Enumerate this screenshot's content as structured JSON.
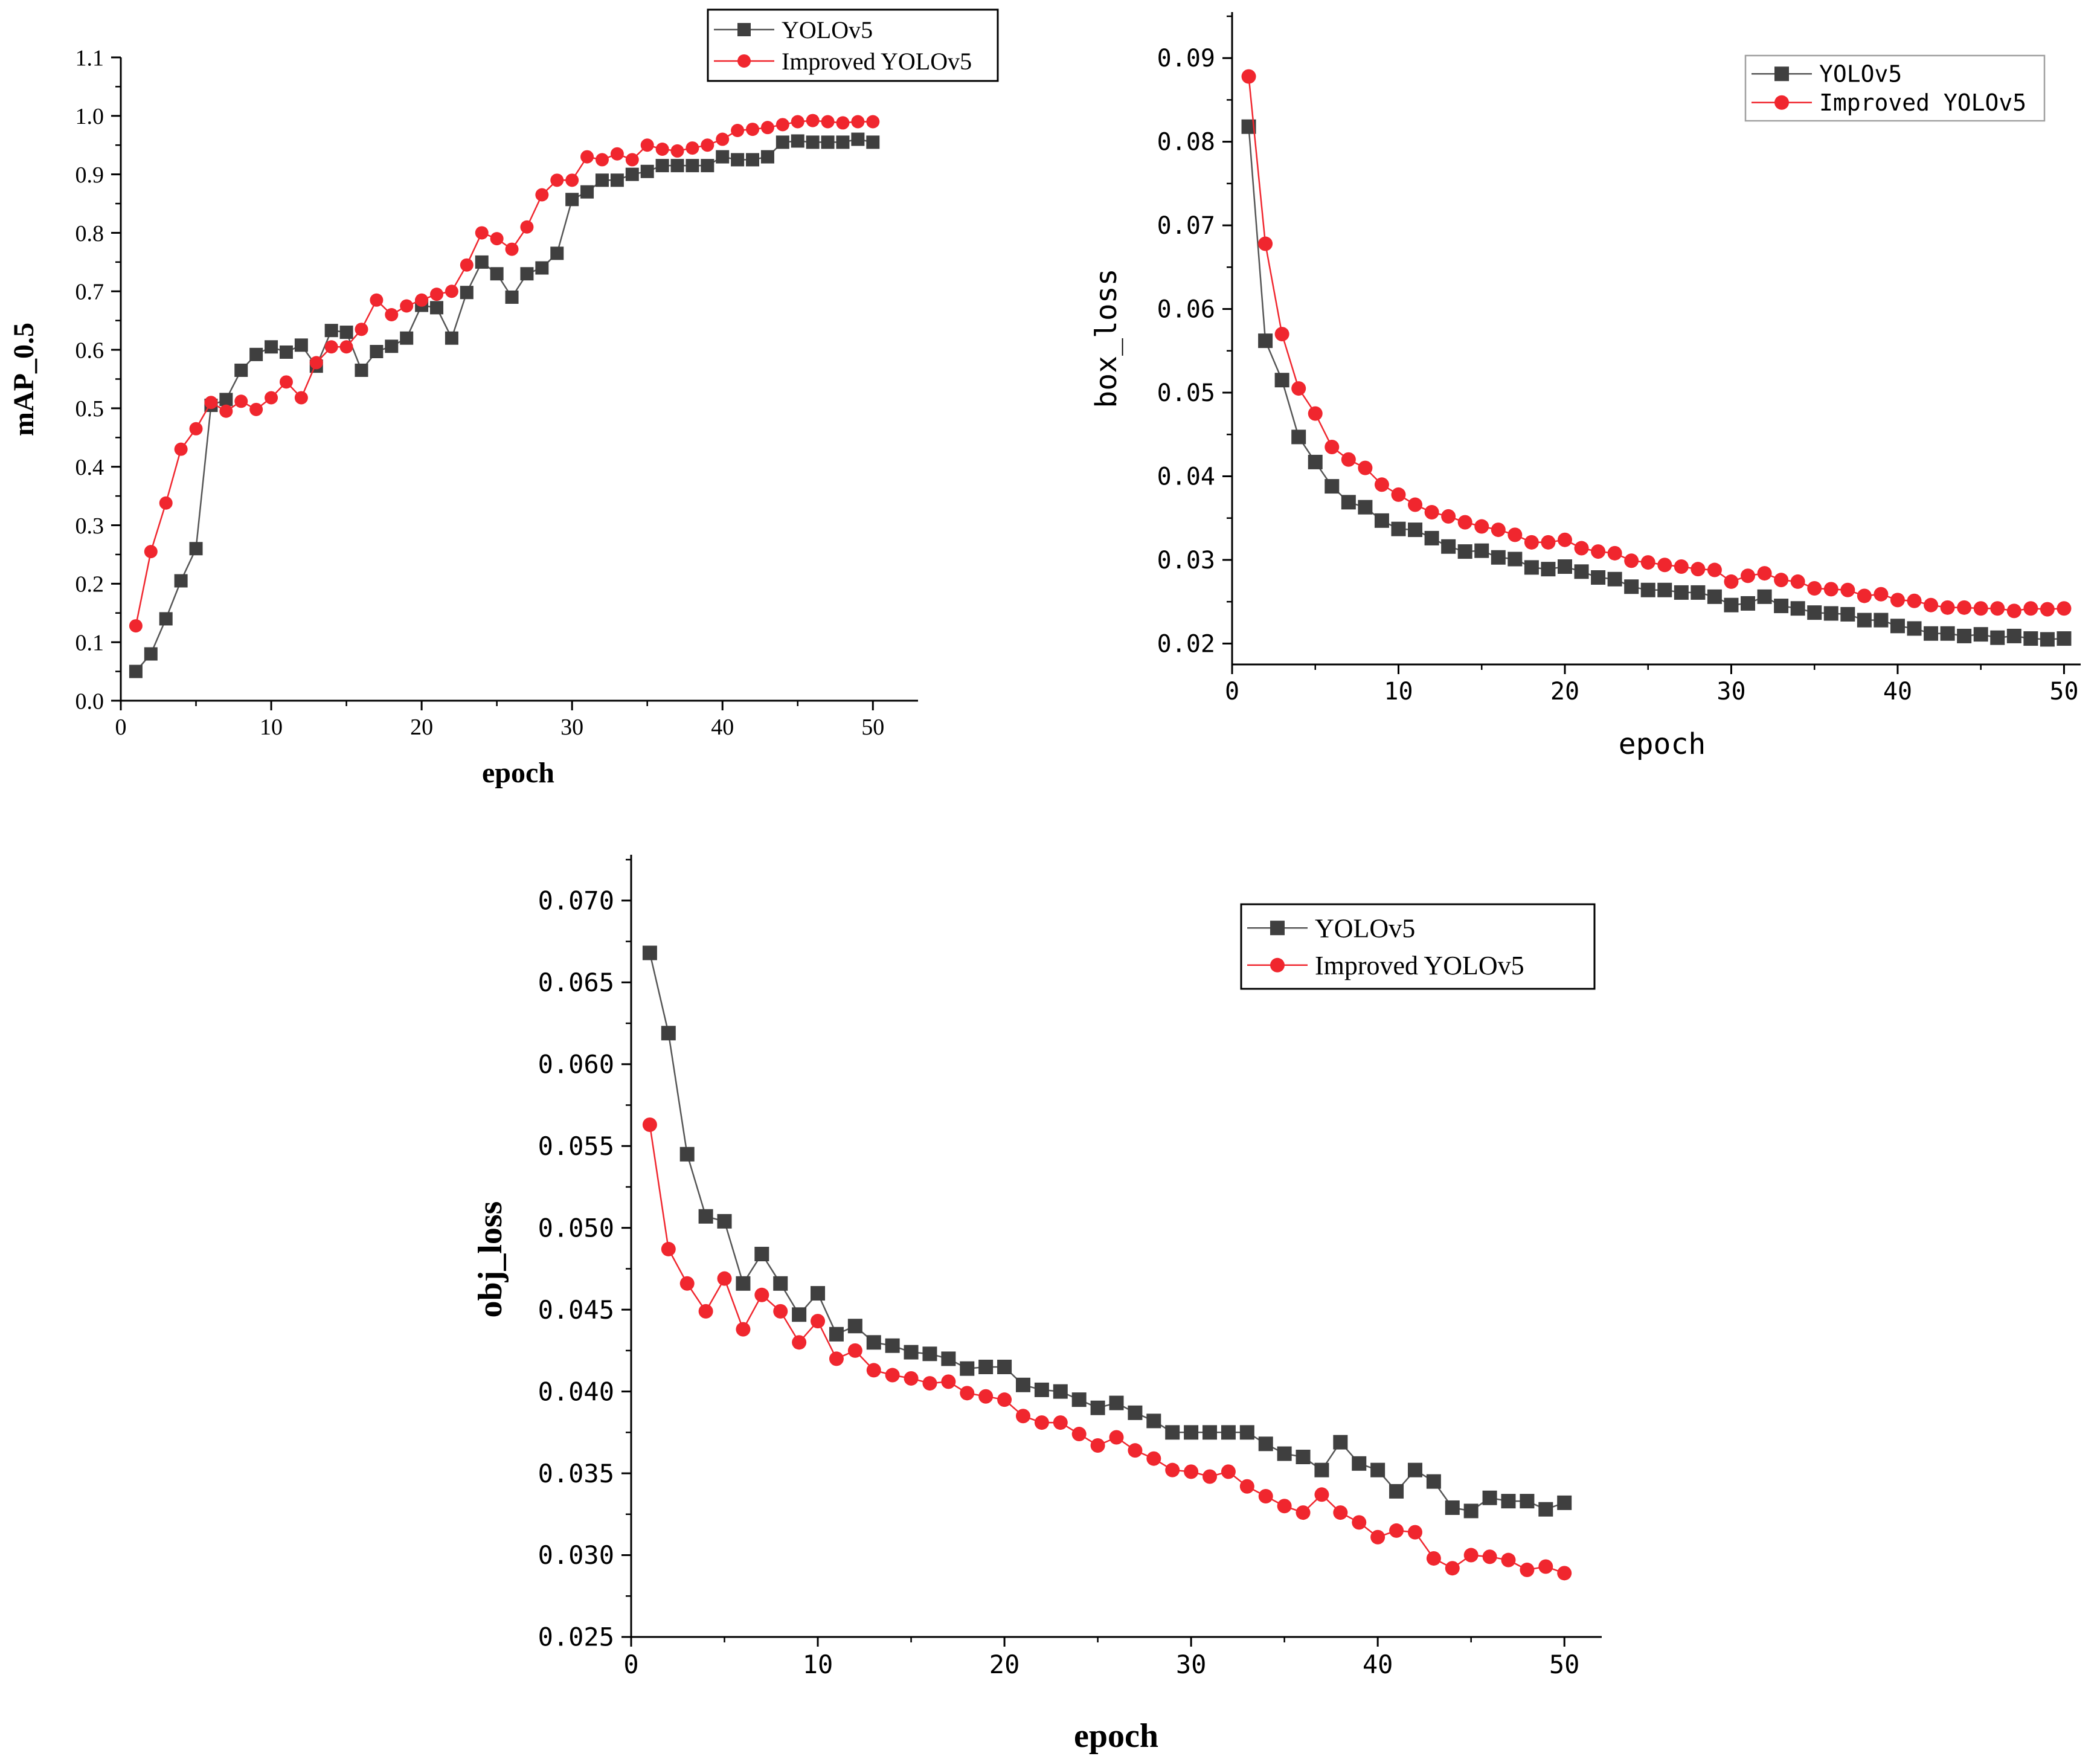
{
  "colors": {
    "yolov5": "#3f3f3f",
    "improved": "#f0262e",
    "yolov5_line": "#555555",
    "improved_line": "#f0262e"
  },
  "chart_data": [
    {
      "type": "line",
      "id": "map",
      "title": "",
      "xlabel": "epoch",
      "ylabel": "mAP_0.5",
      "xlim": [
        0,
        53
      ],
      "ylim": [
        0.0,
        1.1
      ],
      "xticks": [
        "0",
        "10",
        "20",
        "30",
        "40",
        "50"
      ],
      "yticks": [
        "0.0",
        "0.1",
        "0.2",
        "0.3",
        "0.4",
        "0.5",
        "0.6",
        "0.7",
        "0.8",
        "0.9",
        "1.0",
        "1.1"
      ],
      "legend": {
        "position": "top-right",
        "entries": [
          "YOLOv5",
          "Improved YOLOv5"
        ]
      },
      "x": [
        1,
        2,
        3,
        4,
        5,
        6,
        7,
        8,
        9,
        10,
        11,
        12,
        13,
        14,
        15,
        16,
        17,
        18,
        19,
        20,
        21,
        22,
        23,
        24,
        25,
        26,
        27,
        28,
        29,
        30,
        31,
        32,
        33,
        34,
        35,
        36,
        37,
        38,
        39,
        40,
        41,
        42,
        43,
        44,
        45,
        46,
        47,
        48,
        49,
        50
      ],
      "series": [
        {
          "name": "YOLOv5",
          "marker": "square",
          "values": [
            0.05,
            0.08,
            0.14,
            0.205,
            0.26,
            0.505,
            0.515,
            0.565,
            0.592,
            0.605,
            0.596,
            0.608,
            0.572,
            0.633,
            0.63,
            0.565,
            0.597,
            0.606,
            0.62,
            0.676,
            0.672,
            0.62,
            0.698,
            0.75,
            0.73,
            0.69,
            0.73,
            0.74,
            0.765,
            0.857,
            0.87,
            0.89,
            0.89,
            0.9,
            0.905,
            0.915,
            0.915,
            0.915,
            0.915,
            0.93,
            0.925,
            0.925,
            0.93,
            0.955,
            0.957,
            0.955,
            0.955,
            0.955,
            0.96,
            0.955
          ]
        },
        {
          "name": "Improved YOLOv5",
          "marker": "circle",
          "values": [
            0.128,
            0.255,
            0.338,
            0.43,
            0.465,
            0.51,
            0.495,
            0.512,
            0.498,
            0.518,
            0.545,
            0.518,
            0.578,
            0.605,
            0.605,
            0.635,
            0.685,
            0.66,
            0.675,
            0.685,
            0.695,
            0.7,
            0.745,
            0.8,
            0.79,
            0.772,
            0.81,
            0.865,
            0.89,
            0.89,
            0.93,
            0.925,
            0.935,
            0.925,
            0.95,
            0.943,
            0.94,
            0.945,
            0.95,
            0.96,
            0.975,
            0.977,
            0.98,
            0.985,
            0.99,
            0.992,
            0.99,
            0.988,
            0.99,
            0.99
          ]
        }
      ]
    },
    {
      "type": "line",
      "id": "box",
      "title": "",
      "xlabel": "epoch",
      "ylabel": "box_loss",
      "xlim": [
        0,
        51
      ],
      "ylim": [
        0.0175,
        0.0955
      ],
      "xticks": [
        "0",
        "10",
        "20",
        "30",
        "40",
        "50"
      ],
      "yticks": [
        "0.02",
        "0.03",
        "0.04",
        "0.05",
        "0.06",
        "0.07",
        "0.08",
        "0.09"
      ],
      "legend": {
        "position": "top-right",
        "entries": [
          "YOLOv5",
          "Improved YOLOv5"
        ]
      },
      "x": [
        1,
        2,
        3,
        4,
        5,
        6,
        7,
        8,
        9,
        10,
        11,
        12,
        13,
        14,
        15,
        16,
        17,
        18,
        19,
        20,
        21,
        22,
        23,
        24,
        25,
        26,
        27,
        28,
        29,
        30,
        31,
        32,
        33,
        34,
        35,
        36,
        37,
        38,
        39,
        40,
        41,
        42,
        43,
        44,
        45,
        46,
        47,
        48,
        49,
        50
      ],
      "series": [
        {
          "name": "YOLOv5",
          "marker": "square",
          "values": [
            0.0818,
            0.0562,
            0.0515,
            0.0447,
            0.0417,
            0.0388,
            0.0369,
            0.0363,
            0.0347,
            0.0337,
            0.0336,
            0.0326,
            0.0316,
            0.031,
            0.0311,
            0.0303,
            0.0301,
            0.0291,
            0.0289,
            0.0292,
            0.0286,
            0.0279,
            0.0277,
            0.0268,
            0.0264,
            0.0264,
            0.0261,
            0.0261,
            0.0256,
            0.0246,
            0.0248,
            0.0256,
            0.0245,
            0.0242,
            0.0237,
            0.0236,
            0.0235,
            0.0228,
            0.0228,
            0.0221,
            0.0218,
            0.0212,
            0.0212,
            0.0209,
            0.0211,
            0.0207,
            0.0209,
            0.0206,
            0.0205,
            0.0206
          ]
        },
        {
          "name": "Improved YOLOv5",
          "marker": "circle",
          "values": [
            0.0878,
            0.0678,
            0.057,
            0.0505,
            0.0475,
            0.0435,
            0.042,
            0.041,
            0.039,
            0.0378,
            0.0366,
            0.0357,
            0.0352,
            0.0345,
            0.034,
            0.0336,
            0.033,
            0.0321,
            0.0321,
            0.0324,
            0.0314,
            0.031,
            0.0308,
            0.0299,
            0.0297,
            0.0294,
            0.0292,
            0.0289,
            0.0288,
            0.0274,
            0.0281,
            0.0284,
            0.0276,
            0.0274,
            0.0266,
            0.0265,
            0.0264,
            0.0257,
            0.0259,
            0.0252,
            0.0251,
            0.0246,
            0.0243,
            0.0243,
            0.0242,
            0.0242,
            0.0239,
            0.0242,
            0.0241,
            0.0242
          ]
        }
      ]
    },
    {
      "type": "line",
      "id": "obj",
      "title": "",
      "xlabel": "epoch",
      "ylabel": "obj_loss",
      "xlim": [
        0,
        52
      ],
      "ylim": [
        0.025,
        0.0728
      ],
      "xticks": [
        "0",
        "10",
        "20",
        "30",
        "40",
        "50"
      ],
      "yticks": [
        "0.025",
        "0.030",
        "0.035",
        "0.040",
        "0.045",
        "0.050",
        "0.055",
        "0.060",
        "0.065",
        "0.070"
      ],
      "legend": {
        "position": "top-right",
        "entries": [
          "YOLOv5",
          "Improved YOLOv5"
        ]
      },
      "x": [
        1,
        2,
        3,
        4,
        5,
        6,
        7,
        8,
        9,
        10,
        11,
        12,
        13,
        14,
        15,
        16,
        17,
        18,
        19,
        20,
        21,
        22,
        23,
        24,
        25,
        26,
        27,
        28,
        29,
        30,
        31,
        32,
        33,
        34,
        35,
        36,
        37,
        38,
        39,
        40,
        41,
        42,
        43,
        44,
        45,
        46,
        47,
        48,
        49,
        50
      ],
      "series": [
        {
          "name": "YOLOv5",
          "marker": "square",
          "values": [
            0.0668,
            0.0619,
            0.0545,
            0.0507,
            0.0504,
            0.0466,
            0.0484,
            0.0466,
            0.0447,
            0.046,
            0.0435,
            0.044,
            0.043,
            0.0428,
            0.0424,
            0.0423,
            0.042,
            0.0414,
            0.0415,
            0.0415,
            0.0404,
            0.0401,
            0.04,
            0.0395,
            0.039,
            0.0393,
            0.0387,
            0.0382,
            0.0375,
            0.0375,
            0.0375,
            0.0375,
            0.0375,
            0.0368,
            0.0362,
            0.036,
            0.0352,
            0.0369,
            0.0356,
            0.0352,
            0.0339,
            0.0352,
            0.0345,
            0.0329,
            0.0327,
            0.0335,
            0.0333,
            0.0333,
            0.0328,
            0.0332
          ]
        },
        {
          "name": "Improved YOLOv5",
          "marker": "circle",
          "values": [
            0.0563,
            0.0487,
            0.0466,
            0.0449,
            0.0469,
            0.0438,
            0.0459,
            0.0449,
            0.043,
            0.0443,
            0.042,
            0.0425,
            0.0413,
            0.041,
            0.0408,
            0.0405,
            0.0406,
            0.0399,
            0.0397,
            0.0395,
            0.0385,
            0.0381,
            0.0381,
            0.0374,
            0.0367,
            0.0372,
            0.0364,
            0.0359,
            0.0352,
            0.0351,
            0.0348,
            0.0351,
            0.0342,
            0.0336,
            0.033,
            0.0326,
            0.0337,
            0.0326,
            0.032,
            0.0311,
            0.0315,
            0.0314,
            0.0298,
            0.0292,
            0.03,
            0.0299,
            0.0297,
            0.0291,
            0.0293,
            0.0289
          ]
        }
      ]
    }
  ]
}
